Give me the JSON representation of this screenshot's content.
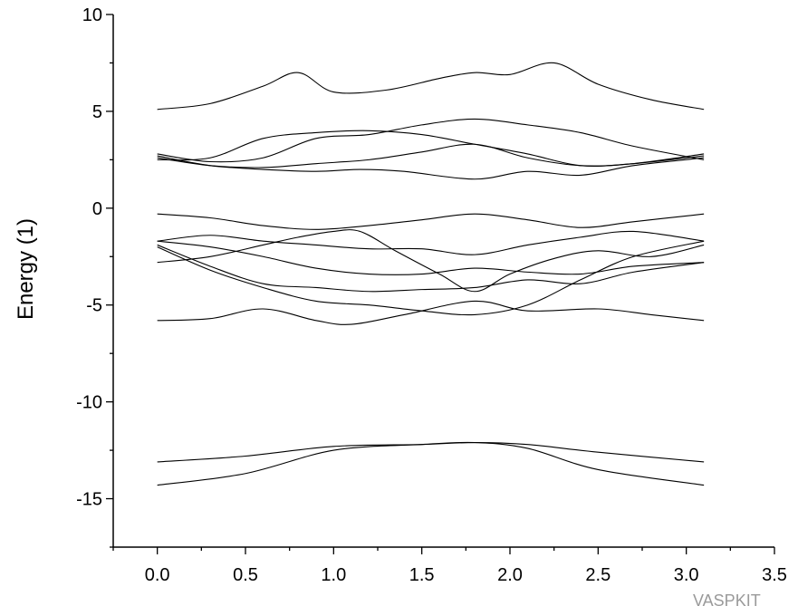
{
  "chart_data": {
    "type": "line",
    "title": "",
    "xlabel": "",
    "ylabel": "Energy (1)",
    "xlim": [
      -0.25,
      3.5
    ],
    "ylim": [
      -17.5,
      10
    ],
    "x_ticks": [
      "0.0",
      "0.5",
      "1.0",
      "1.5",
      "2.0",
      "2.5",
      "3.0",
      "3.5"
    ],
    "x_tick_values": [
      0,
      0.5,
      1,
      1.5,
      2,
      2.5,
      3,
      3.5
    ],
    "y_ticks": [
      "10",
      "5",
      "0",
      "-5",
      "-10",
      "-15"
    ],
    "y_tick_values": [
      10,
      5,
      0,
      -5,
      -10,
      -15
    ],
    "grid": false,
    "legend": "none",
    "line_color": "#000000",
    "series": [
      {
        "x": [
          0,
          0.3,
          0.6,
          0.8,
          1.0,
          1.3,
          1.6,
          1.8,
          2.0,
          2.25,
          2.5,
          2.8,
          3.1
        ],
        "y": [
          5.1,
          5.4,
          6.3,
          7.0,
          6.0,
          6.1,
          6.7,
          7.0,
          6.9,
          7.5,
          6.4,
          5.6,
          5.1
        ]
      },
      {
        "x": [
          0,
          0.3,
          0.6,
          0.9,
          1.15,
          1.4,
          1.8,
          2.1,
          2.4,
          2.7,
          3.1
        ],
        "y": [
          2.7,
          2.2,
          2.0,
          1.9,
          2.0,
          1.9,
          1.5,
          1.9,
          1.7,
          2.2,
          2.6
        ]
      },
      {
        "x": [
          0,
          0.3,
          0.6,
          0.9,
          1.2,
          1.5,
          1.8,
          2.1,
          2.4,
          2.7,
          3.1
        ],
        "y": [
          2.5,
          2.6,
          3.6,
          3.9,
          4.0,
          3.8,
          3.3,
          2.8,
          2.2,
          2.3,
          2.7
        ]
      },
      {
        "x": [
          0,
          0.3,
          0.6,
          0.9,
          1.2,
          1.5,
          1.8,
          2.1,
          2.4,
          2.7,
          3.1
        ],
        "y": [
          2.8,
          2.4,
          2.6,
          3.6,
          3.8,
          4.3,
          4.6,
          4.3,
          3.9,
          3.2,
          2.5
        ]
      },
      {
        "x": [
          0,
          0.3,
          0.6,
          0.9,
          1.2,
          1.5,
          1.8,
          2.1,
          2.4,
          2.7,
          3.1
        ],
        "y": [
          2.6,
          2.2,
          2.1,
          2.3,
          2.5,
          2.9,
          3.3,
          2.6,
          2.2,
          2.3,
          2.8
        ]
      },
      {
        "x": [
          0,
          0.3,
          0.6,
          0.9,
          1.2,
          1.5,
          1.8,
          2.1,
          2.4,
          2.7,
          3.1
        ],
        "y": [
          -0.3,
          -0.5,
          -0.9,
          -1.1,
          -0.9,
          -0.6,
          -0.3,
          -0.6,
          -1.0,
          -0.7,
          -0.3
        ]
      },
      {
        "x": [
          0,
          0.3,
          0.6,
          0.9,
          1.2,
          1.5,
          1.8,
          2.1,
          2.4,
          2.7,
          3.1
        ],
        "y": [
          -1.7,
          -1.4,
          -1.7,
          -1.9,
          -2.1,
          -2.1,
          -2.4,
          -1.9,
          -1.5,
          -1.2,
          -1.7
        ]
      },
      {
        "x": [
          0,
          0.3,
          0.6,
          0.8,
          1.0,
          1.15,
          1.35,
          1.6,
          1.8,
          2.0,
          2.25,
          2.5,
          2.8,
          3.1
        ],
        "y": [
          -2.8,
          -2.5,
          -1.9,
          -1.5,
          -1.2,
          -1.2,
          -2.2,
          -3.4,
          -4.3,
          -3.4,
          -2.6,
          -2.2,
          -2.5,
          -1.9
        ]
      },
      {
        "x": [
          0,
          0.3,
          0.6,
          0.9,
          1.2,
          1.5,
          1.8,
          2.1,
          2.4,
          2.7,
          3.1
        ],
        "y": [
          -1.7,
          -2.0,
          -2.5,
          -3.1,
          -3.4,
          -3.4,
          -3.1,
          -3.3,
          -3.4,
          -3.0,
          -2.8
        ]
      },
      {
        "x": [
          0,
          0.3,
          0.6,
          0.9,
          1.2,
          1.5,
          1.8,
          2.1,
          2.4,
          2.7,
          3.1
        ],
        "y": [
          -1.9,
          -3.0,
          -3.9,
          -4.1,
          -4.3,
          -4.2,
          -4.1,
          -3.7,
          -3.9,
          -3.3,
          -2.8
        ]
      },
      {
        "x": [
          0,
          0.3,
          0.6,
          0.9,
          1.2,
          1.5,
          1.8,
          2.1,
          2.4,
          2.7,
          3.1
        ],
        "y": [
          -2.0,
          -3.2,
          -4.1,
          -4.8,
          -5.0,
          -5.3,
          -5.5,
          -5.0,
          -3.7,
          -2.5,
          -1.7
        ]
      },
      {
        "x": [
          0,
          0.3,
          0.6,
          0.9,
          1.1,
          1.4,
          1.8,
          2.1,
          2.5,
          2.8,
          3.1
        ],
        "y": [
          -5.8,
          -5.7,
          -5.2,
          -5.8,
          -6.0,
          -5.5,
          -4.8,
          -5.3,
          -5.2,
          -5.5,
          -5.8
        ]
      },
      {
        "x": [
          0,
          0.5,
          1.0,
          1.5,
          1.8,
          2.1,
          2.5,
          3.1
        ],
        "y": [
          -13.1,
          -12.8,
          -12.3,
          -12.2,
          -12.1,
          -12.2,
          -12.6,
          -13.1
        ]
      },
      {
        "x": [
          0,
          0.5,
          1.0,
          1.5,
          1.8,
          2.1,
          2.5,
          3.1
        ],
        "y": [
          -14.3,
          -13.7,
          -12.5,
          -12.2,
          -12.1,
          -12.4,
          -13.5,
          -14.3
        ]
      }
    ]
  },
  "watermark": {
    "text": "VASPKIT"
  }
}
